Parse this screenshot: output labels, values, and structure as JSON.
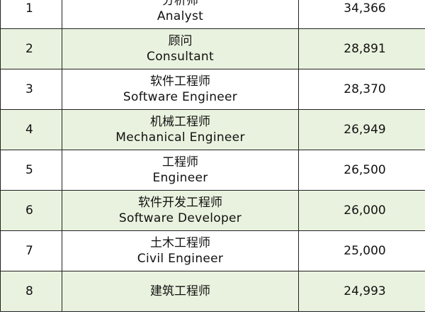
{
  "table": {
    "rows": [
      {
        "rank": "1",
        "title_cn": "分析师",
        "title_en": "Analyst",
        "salary": "34,366"
      },
      {
        "rank": "2",
        "title_cn": "顾问",
        "title_en": "Consultant",
        "salary": "28,891"
      },
      {
        "rank": "3",
        "title_cn": "软件工程师",
        "title_en": "Software Engineer",
        "salary": "28,370"
      },
      {
        "rank": "4",
        "title_cn": "机械工程师",
        "title_en": "Mechanical Engineer",
        "salary": "26,949"
      },
      {
        "rank": "5",
        "title_cn": "工程师",
        "title_en": "Engineer",
        "salary": "26,500"
      },
      {
        "rank": "6",
        "title_cn": "软件开发工程师",
        "title_en": "Software Developer",
        "salary": "26,000"
      },
      {
        "rank": "7",
        "title_cn": "土木工程师",
        "title_en": "Civil Engineer",
        "salary": "25,000"
      },
      {
        "rank": "8",
        "title_cn": "建筑工程师",
        "title_en": "",
        "salary": "24,993"
      }
    ]
  },
  "colors": {
    "stripe": "#e9f2de",
    "border": "#222222"
  }
}
